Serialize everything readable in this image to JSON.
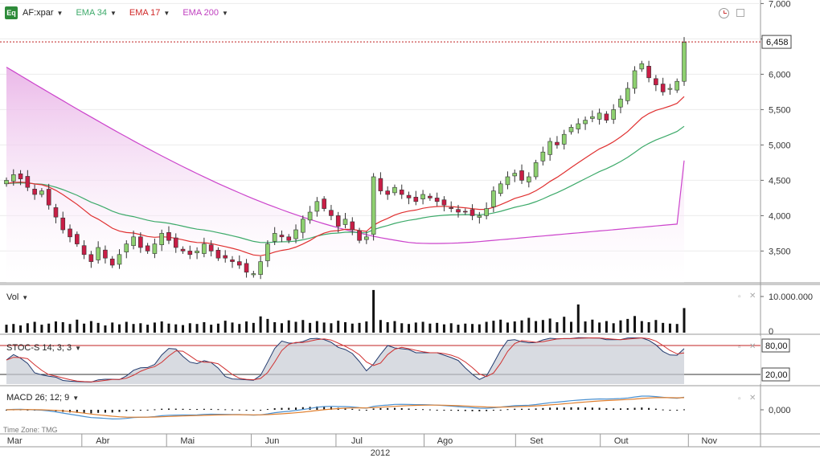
{
  "legend": {
    "icon_text": "Eq",
    "symbol": "AF:xpar",
    "ema34": "EMA 34",
    "ema17": "EMA 17",
    "ema200": "EMA 200",
    "colors": {
      "ema34": "#3daa6a",
      "ema17": "#e03030",
      "ema200": "#cc44cc",
      "up": "#8ed070",
      "down": "#c81e46"
    }
  },
  "panes": {
    "volume_label": "Vol",
    "stoch_label": "STOC-S 14; 3; 3",
    "macd_label": "MACD 26; 12; 9"
  },
  "time_zone": "Time Zone: TMG",
  "year_label": "2012",
  "chart_data": {
    "type": "candlestick",
    "title": "AF:xpar",
    "last_price_label": "6,458",
    "last_price": 6.458,
    "price_axis_ticks": [
      "7,000",
      "6,500",
      "6,000",
      "5,500",
      "5,000",
      "4,500",
      "4,000",
      "3,500"
    ],
    "price_axis_values": [
      7.0,
      6.5,
      6.0,
      5.5,
      5.0,
      4.5,
      4.0,
      3.5
    ],
    "ylim": [
      3.05,
      7.05
    ],
    "x_months": [
      "Mar",
      "Abr",
      "Mai",
      "Jun",
      "Jul",
      "Ago",
      "Set",
      "Out",
      "Nov"
    ],
    "series_close": [
      4.5,
      4.58,
      4.52,
      4.4,
      4.3,
      4.35,
      4.15,
      3.98,
      3.8,
      3.7,
      3.6,
      3.45,
      3.35,
      3.55,
      3.4,
      3.3,
      3.45,
      3.6,
      3.7,
      3.55,
      3.5,
      3.6,
      3.75,
      3.65,
      3.55,
      3.5,
      3.45,
      3.5,
      3.6,
      3.5,
      3.4,
      3.4,
      3.35,
      3.3,
      3.2,
      3.18,
      3.35,
      3.6,
      3.75,
      3.7,
      3.65,
      3.8,
      3.95,
      4.05,
      4.2,
      4.1,
      4.0,
      3.85,
      3.95,
      3.8,
      3.65,
      3.7,
      4.55,
      4.35,
      4.3,
      4.4,
      4.3,
      4.25,
      4.2,
      4.3,
      4.25,
      4.2,
      4.15,
      4.1,
      4.05,
      4.05,
      4.0,
      4.0,
      4.1,
      4.35,
      4.45,
      4.55,
      4.6,
      4.5,
      4.55,
      4.75,
      4.9,
      5.05,
      5.0,
      5.15,
      5.25,
      5.3,
      5.35,
      5.4,
      5.45,
      5.35,
      5.5,
      5.65,
      5.8,
      6.05,
      6.15,
      5.95,
      5.85,
      5.75,
      5.8,
      5.9,
      6.45
    ],
    "ema17_endpoint": 5.75,
    "ema34_endpoint": 5.4,
    "ema200_endpoint": 4.78,
    "volume": {
      "axis_ticks": [
        "10.000.000",
        "0"
      ],
      "axis_values": [
        10000000,
        0
      ],
      "values": [
        2.2,
        2.4,
        2.0,
        2.6,
        3.0,
        2.2,
        2.5,
        3.1,
        2.9,
        2.4,
        3.6,
        2.5,
        3.2,
        2.7,
        2.0,
        2.8,
        2.3,
        3.0,
        2.4,
        2.6,
        2.2,
        2.8,
        3.1,
        2.5,
        2.3,
        2.1,
        2.6,
        2.4,
        2.9,
        2.2,
        2.5,
        3.3,
        2.8,
        2.4,
        3.1,
        2.7,
        4.5,
        3.8,
        2.9,
        2.6,
        3.4,
        3.0,
        3.5,
        2.7,
        3.2,
        2.8,
        2.6,
        3.3,
        2.9,
        2.5,
        2.7,
        3.1,
        11.8,
        3.5,
        2.9,
        3.2,
        2.6,
        2.4,
        2.8,
        3.0,
        2.5,
        2.7,
        2.3,
        2.6,
        2.2,
        2.5,
        2.4,
        2.3,
        3.0,
        3.3,
        3.6,
        2.8,
        3.1,
        3.4,
        4.1,
        3.2,
        3.5,
        3.9,
        2.9,
        4.4,
        3.0,
        7.8,
        3.1,
        3.6,
        2.8,
        3.2,
        2.6,
        3.4,
        3.8,
        4.6,
        3.2,
        2.9,
        3.5,
        2.7,
        2.5,
        2.4,
        6.8
      ]
    },
    "stochastic": {
      "axis_ticks": [
        "80,00",
        "20,00"
      ],
      "axis_values": [
        80,
        20
      ]
    },
    "macd": {
      "axis_ticks": [
        "0,000"
      ],
      "axis_values": [
        0
      ]
    }
  }
}
